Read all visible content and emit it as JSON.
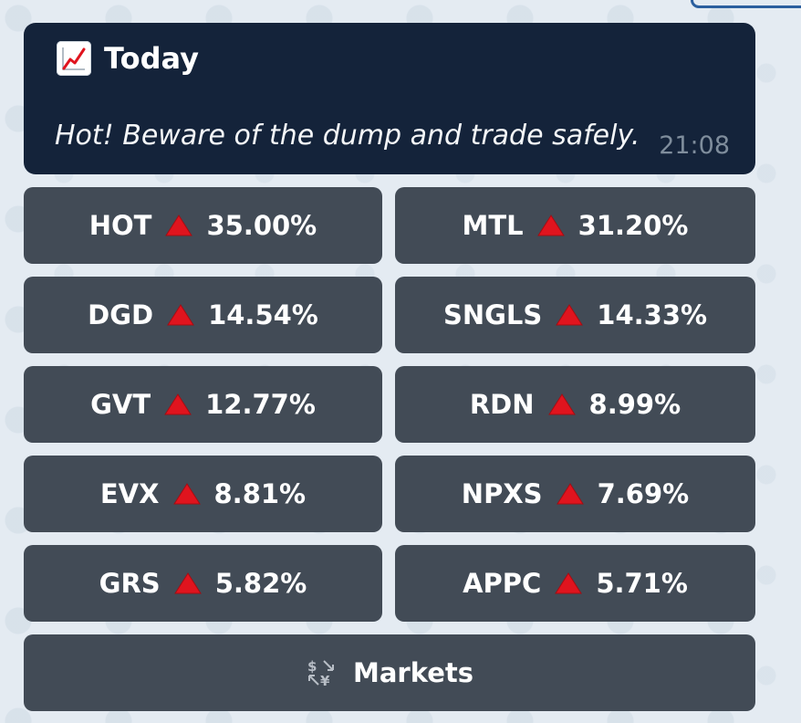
{
  "message": {
    "icon": "chart-increasing-icon",
    "title": "Today",
    "text": "Hot! Beware of the dump and trade safely.",
    "time": "21:08"
  },
  "buttons": [
    {
      "symbol": "HOT",
      "change": "35.00%"
    },
    {
      "symbol": "MTL",
      "change": "31.20%"
    },
    {
      "symbol": "DGD",
      "change": "14.54%"
    },
    {
      "symbol": "SNGLS",
      "change": "14.33%"
    },
    {
      "symbol": "GVT",
      "change": "12.77%"
    },
    {
      "symbol": "RDN",
      "change": "8.99%"
    },
    {
      "symbol": "EVX",
      "change": "8.81%"
    },
    {
      "symbol": "NPXS",
      "change": "7.69%"
    },
    {
      "symbol": "GRS",
      "change": "5.82%"
    },
    {
      "symbol": "APPC",
      "change": "5.71%"
    }
  ],
  "markets_button": {
    "icon": "currency-exchange-icon",
    "label": "Markets"
  },
  "colors": {
    "message_bg": "#14233a",
    "button_bg": "#424b56",
    "up_triangle": "#e0141e",
    "page_bg": "#e4ebf2"
  }
}
